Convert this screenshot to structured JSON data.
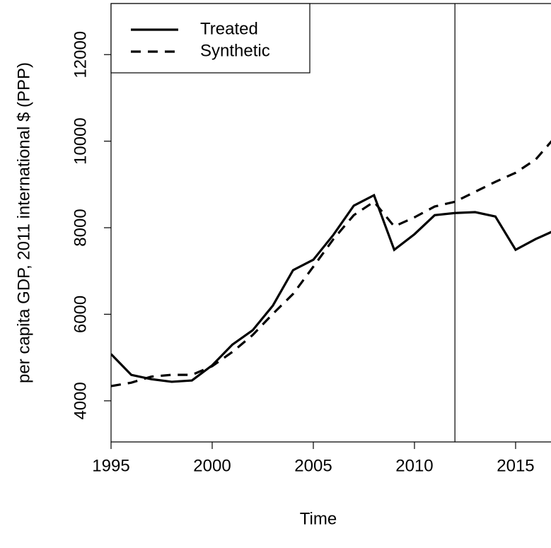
{
  "chart_data": {
    "type": "line",
    "xlabel": "Time",
    "ylabel": "per capita GDP, 2011 international $ (PPP)",
    "x": [
      1995,
      1996,
      1997,
      1998,
      1999,
      2000,
      2001,
      2002,
      2003,
      2004,
      2005,
      2006,
      2007,
      2008,
      2009,
      2010,
      2011,
      2012,
      2013,
      2014,
      2015,
      2016,
      2017
    ],
    "series": [
      {
        "name": "Treated",
        "color": "#000000",
        "dash": "solid",
        "values": [
          5080,
          4600,
          4500,
          4440,
          4470,
          4820,
          5300,
          5630,
          6200,
          7020,
          7260,
          7840,
          8510,
          8750,
          7490,
          7850,
          8290,
          8340,
          8360,
          8260,
          7490,
          7740,
          7950
        ]
      },
      {
        "name": "Synthetic",
        "color": "#000000",
        "dash": "dashed",
        "values": [
          4340,
          4420,
          4560,
          4600,
          4600,
          4800,
          5130,
          5520,
          6010,
          6470,
          7100,
          7740,
          8290,
          8600,
          8030,
          8240,
          8490,
          8600,
          8830,
          9060,
          9270,
          9580,
          10120
        ]
      }
    ],
    "vline": 2012,
    "xlim": [
      1995,
      2016.75
    ],
    "xticks": [
      1995,
      2000,
      2005,
      2010,
      2015
    ],
    "ylim": [
      3050,
      13180
    ],
    "yticks": [
      4000,
      6000,
      8000,
      10000,
      12000
    ],
    "legend": "top-left"
  }
}
